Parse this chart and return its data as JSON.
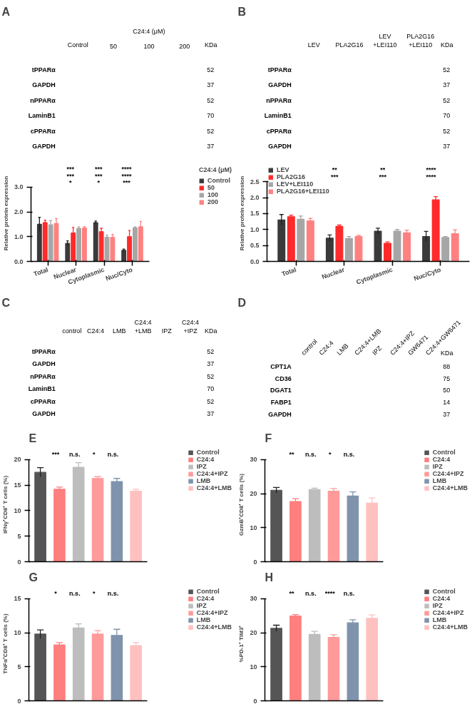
{
  "chart_data": [
    {
      "type": "other",
      "title": "A",
      "categories": [
        "Control",
        "50",
        "100",
        "200"
      ],
      "annotations": [
        "C24:4 (μM)"
      ],
      "y2label": "KDa",
      "y_categories": [
        "tPPARα",
        "GAPDH",
        "nPPARα",
        "LaminB1",
        "cPPARα",
        "GAPDH"
      ],
      "y2_categories": [
        "52",
        "37",
        "52",
        "70",
        "52",
        "37"
      ]
    },
    {
      "type": "other",
      "title": "B",
      "categories": [
        "LEV",
        "PLA2G16",
        "LEV\n+LEI110",
        "PLA2G16\n+LEI110"
      ],
      "y2label": "KDa",
      "y_categories": [
        "tPPARα",
        "GAPDH",
        "nPPARα",
        "LaminB1",
        "cPPARα",
        "GAPDH"
      ],
      "y2_categories": [
        "52",
        "37",
        "52",
        "70",
        "52",
        "37"
      ]
    },
    {
      "type": "bar",
      "ylabel": "Relative protein expression",
      "legend_title": "C24:4 (μM)",
      "legend": "right",
      "categories": [
        "Total",
        "Nuclear",
        "Cytoplasmic",
        "Nuc/Cyto"
      ],
      "ylim": [
        0,
        3
      ],
      "yticks": [
        {
          "value": 0,
          "label": "0.0"
        },
        {
          "value": 1,
          "label": "1.0"
        },
        {
          "value": 2,
          "label": "2.0"
        },
        {
          "value": 3,
          "label": "3.0"
        }
      ],
      "series": [
        {
          "name": "Control",
          "color": "#3a3a3a",
          "values": [
            1.5,
            0.73,
            1.57,
            0.45
          ],
          "errors": [
            0.28,
            0.1,
            0.06,
            0.05
          ]
        },
        {
          "name": "50",
          "color": "#ff2a2a",
          "values": [
            1.57,
            1.15,
            1.2,
            1.0
          ],
          "errors": [
            0.1,
            0.22,
            0.14,
            0.25
          ]
        },
        {
          "name": "100",
          "color": "#a6a6a6",
          "values": [
            1.48,
            1.33,
            0.98,
            1.36
          ],
          "errors": [
            0.17,
            0.06,
            0.08,
            0.03
          ]
        },
        {
          "name": "200",
          "color": "#ff8080",
          "values": [
            1.53,
            1.35,
            0.97,
            1.4
          ],
          "errors": [
            0.2,
            0.06,
            0.12,
            0.22
          ]
        }
      ],
      "annotations": [
        "*",
        "*",
        "***",
        "***",
        "***",
        "****",
        "***",
        "***",
        "****"
      ]
    },
    {
      "type": "bar",
      "ylabel": "Relative protein expression",
      "legend": "top left",
      "categories": [
        "Total",
        "Nuclear",
        "Cytoplasmic",
        "Nuc/Cyto"
      ],
      "ylim": [
        0,
        2.5
      ],
      "yticks": [
        {
          "value": 0,
          "label": "0.0"
        },
        {
          "value": 0.5,
          "label": "0.5"
        },
        {
          "value": 1,
          "label": "1.0"
        },
        {
          "value": 1.5,
          "label": "1.5"
        },
        {
          "value": 2,
          "label": "2.0"
        },
        {
          "value": 2.5,
          "label": "2.5"
        }
      ],
      "series": [
        {
          "name": "LEV",
          "color": "#3a3a3a",
          "values": [
            1.3,
            0.73,
            0.95,
            0.78
          ],
          "errors": [
            0.17,
            0.1,
            0.09,
            0.16
          ]
        },
        {
          "name": "PLA2G16",
          "color": "#ff2a2a",
          "values": [
            1.4,
            1.1,
            0.57,
            1.93
          ],
          "errors": [
            0.05,
            0.04,
            0.04,
            0.1
          ]
        },
        {
          "name": "LEV+LEI110",
          "color": "#a6a6a6",
          "values": [
            1.32,
            0.72,
            0.95,
            0.75
          ],
          "errors": [
            0.1,
            0.06,
            0.05,
            0.03
          ]
        },
        {
          "name": "PLA2G16+LEI110",
          "color": "#ff8080",
          "values": [
            1.27,
            0.78,
            0.9,
            0.87
          ],
          "errors": [
            0.08,
            0.04,
            0.08,
            0.12
          ]
        }
      ],
      "annotations": [
        "***",
        "***",
        "****",
        "**",
        "**",
        "****"
      ]
    },
    {
      "type": "other",
      "title": "C",
      "categories": [
        "control",
        "C24:4",
        "LMB",
        "C24:4\n+LMB",
        "IPZ",
        "C24:4\n+IPZ"
      ],
      "y2label": "KDa",
      "y_categories": [
        "tPPARα",
        "GAPDH",
        "nPPARα",
        "LaminB1",
        "cPPARα",
        "GAPDH"
      ],
      "y2_categories": [
        "52",
        "37",
        "52",
        "70",
        "52",
        "37"
      ]
    },
    {
      "type": "other",
      "title": "D",
      "categories": [
        "control",
        "C24:4",
        "LMB",
        "C24:4+LMB",
        "IPZ",
        "C24:4+IPZ",
        "GW6471",
        "C24:4+GW6471"
      ],
      "y2label": "KDa",
      "y_categories": [
        "CPT1A",
        "CD36",
        "DGAT1",
        "FABP1",
        "GAPDH"
      ],
      "y2_categories": [
        "88",
        "75",
        "50",
        "14",
        "37"
      ]
    },
    {
      "type": "bar",
      "title": "E",
      "ylabel": "IFNγ⁺CD8⁺ T cells (%)",
      "legend": "right",
      "tick_labels": "y",
      "categories": [
        null,
        null,
        null,
        null,
        null,
        null
      ],
      "ylim": [
        0,
        20
      ],
      "yticks": [
        0,
        5,
        10,
        15,
        20
      ],
      "series": [
        {
          "name": "Control",
          "color": "#555555",
          "values": [
            17.5,
            null,
            null,
            null,
            null,
            null
          ],
          "errors": [
            0.9,
            null,
            null,
            null,
            null,
            null
          ]
        },
        {
          "name": "C24:4",
          "color": "#ff7f7f",
          "values": [
            null,
            14.2,
            null,
            null,
            null,
            null
          ],
          "errors": [
            null,
            0.4,
            null,
            null,
            null,
            null
          ]
        },
        {
          "name": "IPZ",
          "color": "#bdbdbd",
          "values": [
            null,
            null,
            18.5,
            null,
            null,
            null
          ],
          "errors": [
            null,
            null,
            0.9,
            null,
            null,
            null
          ]
        },
        {
          "name": "C24:4+IPZ",
          "color": "#ff9a9a",
          "values": [
            null,
            null,
            null,
            16.3,
            null,
            null
          ],
          "errors": [
            null,
            null,
            null,
            0.35,
            null,
            null
          ]
        },
        {
          "name": "LMB",
          "color": "#7f93ad",
          "values": [
            null,
            null,
            null,
            null,
            15.7,
            null
          ],
          "errors": [
            null,
            null,
            null,
            null,
            0.6,
            null
          ]
        },
        {
          "name": "C24:4+LMB",
          "color": "#ffc0c0",
          "values": [
            null,
            null,
            null,
            null,
            null,
            13.8
          ],
          "errors": [
            null,
            null,
            null,
            null,
            null,
            0.4
          ]
        }
      ],
      "annotations": [
        "***",
        "n.s.",
        "*",
        "n.s."
      ]
    },
    {
      "type": "bar",
      "title": "F",
      "ylabel": "GzmB⁺CD8⁺ T cells (%)",
      "legend": "right",
      "tick_labels": "y",
      "categories": [
        null,
        null,
        null,
        null,
        null,
        null
      ],
      "ylim": [
        0,
        30
      ],
      "yticks": [
        0,
        10,
        20,
        30
      ],
      "series": [
        {
          "name": "Control",
          "color": "#555555",
          "values": [
            21.0,
            null,
            null,
            null,
            null,
            null
          ],
          "errors": [
            0.8,
            null,
            null,
            null,
            null,
            null
          ]
        },
        {
          "name": "C24:4",
          "color": "#ff7f7f",
          "values": [
            null,
            17.7,
            null,
            null,
            null,
            null
          ],
          "errors": [
            null,
            0.8,
            null,
            null,
            null,
            null
          ]
        },
        {
          "name": "IPZ",
          "color": "#bdbdbd",
          "values": [
            null,
            null,
            21.2,
            null,
            null,
            null
          ],
          "errors": [
            null,
            null,
            0.4,
            null,
            null,
            null
          ]
        },
        {
          "name": "C24:4+IPZ",
          "color": "#ff9a9a",
          "values": [
            null,
            null,
            null,
            20.7,
            null,
            null
          ],
          "errors": [
            null,
            null,
            null,
            0.8,
            null,
            null
          ]
        },
        {
          "name": "LMB",
          "color": "#7f93ad",
          "values": [
            null,
            null,
            null,
            null,
            19.3,
            null
          ],
          "errors": [
            null,
            null,
            null,
            null,
            1.2,
            null
          ]
        },
        {
          "name": "C24:4+LMB",
          "color": "#ffc0c0",
          "values": [
            null,
            null,
            null,
            null,
            null,
            17.2
          ],
          "errors": [
            null,
            null,
            null,
            null,
            null,
            1.5
          ]
        }
      ],
      "annotations": [
        "**",
        "n.s.",
        "*",
        "n.s."
      ]
    },
    {
      "type": "bar",
      "title": "G",
      "ylabel": "TNFα⁺CD8⁺ T cells (%)",
      "legend": "right",
      "tick_labels": "y",
      "categories": [
        null,
        null,
        null,
        null,
        null,
        null
      ],
      "ylim": [
        0,
        15
      ],
      "yticks": [
        0,
        5,
        10,
        15
      ],
      "series": [
        {
          "name": "Control",
          "color": "#555555",
          "values": [
            9.8,
            null,
            null,
            null,
            null,
            null
          ],
          "errors": [
            0.6,
            null,
            null,
            null,
            null,
            null
          ]
        },
        {
          "name": "C24:4",
          "color": "#ff7f7f",
          "values": [
            null,
            8.2,
            null,
            null,
            null,
            null
          ],
          "errors": [
            null,
            0.35,
            null,
            null,
            null,
            null
          ]
        },
        {
          "name": "IPZ",
          "color": "#bdbdbd",
          "values": [
            null,
            null,
            10.7,
            null,
            null,
            null
          ],
          "errors": [
            null,
            null,
            0.6,
            null,
            null,
            null
          ]
        },
        {
          "name": "C24:4+IPZ",
          "color": "#ff9a9a",
          "values": [
            null,
            null,
            null,
            9.8,
            null,
            null
          ],
          "errors": [
            null,
            null,
            null,
            0.5,
            null,
            null
          ]
        },
        {
          "name": "LMB",
          "color": "#7f93ad",
          "values": [
            null,
            null,
            null,
            null,
            9.6,
            null
          ],
          "errors": [
            null,
            null,
            null,
            null,
            0.9,
            null
          ]
        },
        {
          "name": "C24:4+LMB",
          "color": "#ffc0c0",
          "values": [
            null,
            null,
            null,
            null,
            null,
            8.1
          ],
          "errors": [
            null,
            null,
            null,
            null,
            null,
            0.45
          ]
        }
      ],
      "annotations": [
        "*",
        "n.s.",
        "*",
        "n.s."
      ]
    },
    {
      "type": "bar",
      "title": "H",
      "ylabel": "%PD-1⁺ TIM3⁺",
      "legend": "right",
      "tick_labels": "y",
      "categories": [
        null,
        null,
        null,
        null,
        null,
        null
      ],
      "ylim": [
        0,
        30
      ],
      "yticks": [
        0,
        10,
        20,
        30
      ],
      "series": [
        {
          "name": "Control",
          "color": "#555555",
          "values": [
            21.3,
            null,
            null,
            null,
            null,
            null
          ],
          "errors": [
            0.9,
            null,
            null,
            null,
            null,
            null
          ]
        },
        {
          "name": "C24:4",
          "color": "#ff7f7f",
          "values": [
            null,
            24.9,
            null,
            null,
            null,
            null
          ],
          "errors": [
            null,
            0.4,
            null,
            null,
            null,
            null
          ]
        },
        {
          "name": "IPZ",
          "color": "#bdbdbd",
          "values": [
            null,
            null,
            19.5,
            null,
            null,
            null
          ],
          "errors": [
            null,
            null,
            0.9,
            null,
            null,
            null
          ]
        },
        {
          "name": "C24:4+IPZ",
          "color": "#ff9a9a",
          "values": [
            null,
            null,
            null,
            18.6,
            null,
            null
          ],
          "errors": [
            null,
            null,
            null,
            0.8,
            null,
            null
          ]
        },
        {
          "name": "LMB",
          "color": "#7f93ad",
          "values": [
            null,
            null,
            null,
            null,
            22.9,
            null
          ],
          "errors": [
            null,
            null,
            null,
            null,
            0.9,
            null
          ]
        },
        {
          "name": "C24:4+LMB",
          "color": "#ffc0c0",
          "values": [
            null,
            null,
            null,
            null,
            null,
            24.2
          ],
          "errors": [
            null,
            null,
            null,
            null,
            null,
            1.0
          ]
        }
      ],
      "annotations": [
        "**",
        "n.s.",
        "****",
        "n.s."
      ]
    }
  ]
}
